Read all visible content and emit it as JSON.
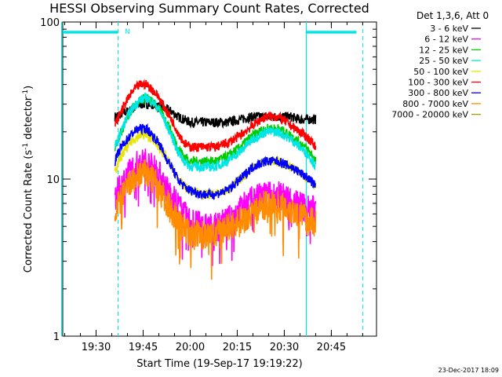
{
  "chart_data": {
    "type": "line",
    "title": "HESSI Observing Summary Count Rates, Corrected",
    "xlabel": "Start Time (19-Sep-17 19:19:22)",
    "ylabel_main": "Corrected Count Rate (s",
    "ylabel_sup1": "-1",
    "ylabel_mid": " detector",
    "ylabel_sup2": "-1",
    "ylabel_end": ")",
    "y_scale": "log",
    "ylim": [
      1,
      100
    ],
    "xlim_minutes": [
      19.25,
      21.0
    ],
    "x_ticks": [
      "19:30",
      "19:45",
      "20:00",
      "20:15",
      "20:30",
      "20:45"
    ],
    "y_ticks": [
      "1",
      "10",
      "100"
    ],
    "legend_header": "Det 1,3,6, Att 0",
    "legend_placement": "right",
    "footer_date": "23-Dec-2017 18:09",
    "night_marker": "N",
    "series": [
      {
        "name": "3 - 6 keV",
        "color": "#000000",
        "x": [
          "19:36",
          "19:38",
          "19:40",
          "19:42",
          "19:44",
          "19:46",
          "19:48",
          "19:50",
          "19:52",
          "19:54",
          "19:56",
          "19:58",
          "20:00",
          "20:04",
          "20:08",
          "20:12",
          "20:16",
          "20:20",
          "20:24",
          "20:28",
          "20:32",
          "20:35",
          "20:38",
          "20:40"
        ],
        "values": [
          25,
          26,
          27,
          28,
          30,
          30,
          30,
          29,
          28,
          27,
          25,
          24,
          23,
          23,
          23,
          23,
          24,
          25,
          25,
          25,
          25,
          24,
          24,
          24
        ]
      },
      {
        "name": "6 - 12 keV",
        "color": "#ff00ff",
        "x": [
          "19:36",
          "19:38",
          "19:40",
          "19:42",
          "19:44",
          "19:46",
          "19:48",
          "19:50",
          "19:52",
          "19:54",
          "19:56",
          "19:58",
          "20:00",
          "20:04",
          "20:08",
          "20:12",
          "20:16",
          "20:20",
          "20:24",
          "20:28",
          "20:32",
          "20:35",
          "20:38",
          "20:40"
        ],
        "values": [
          8,
          9,
          11,
          12,
          13,
          13,
          12,
          11,
          9,
          8,
          7,
          6,
          5.5,
          5,
          5,
          5.5,
          6.5,
          7.5,
          8,
          8,
          7.5,
          7,
          6.5,
          6.5
        ]
      },
      {
        "name": "12 - 25 keV",
        "color": "#00cc00",
        "x": [
          "19:36",
          "19:38",
          "19:40",
          "19:42",
          "19:44",
          "19:46",
          "19:48",
          "19:50",
          "19:52",
          "19:54",
          "19:56",
          "19:58",
          "20:00",
          "20:04",
          "20:08",
          "20:12",
          "20:16",
          "20:20",
          "20:24",
          "20:28",
          "20:32",
          "20:35",
          "20:38",
          "20:40"
        ],
        "values": [
          16,
          20,
          25,
          29,
          32,
          33,
          31,
          28,
          24,
          20,
          16,
          14,
          13,
          13,
          13,
          14,
          16,
          19,
          21,
          21,
          19,
          17,
          15,
          13
        ]
      },
      {
        "name": "25 - 50 keV",
        "color": "#00e5e5",
        "x": [
          "19:36",
          "19:38",
          "19:40",
          "19:42",
          "19:44",
          "19:46",
          "19:48",
          "19:50",
          "19:52",
          "19:54",
          "19:56",
          "19:58",
          "20:00",
          "20:04",
          "20:08",
          "20:12",
          "20:16",
          "20:20",
          "20:24",
          "20:28",
          "20:32",
          "20:35",
          "20:38",
          "20:40"
        ],
        "values": [
          16,
          20,
          25,
          29,
          32,
          33,
          31,
          28,
          23,
          19,
          15,
          13,
          12,
          12,
          12,
          13,
          15,
          18,
          20,
          20,
          18,
          16,
          14,
          12
        ]
      },
      {
        "name": "50 - 100 keV",
        "color": "#e5e500",
        "x": [
          "19:36",
          "19:38",
          "19:40",
          "19:42",
          "19:44",
          "19:46",
          "19:48",
          "19:50",
          "19:52",
          "19:54",
          "19:56",
          "19:58",
          "20:00",
          "20:04",
          "20:08",
          "20:12",
          "20:16",
          "20:20",
          "20:24",
          "20:28",
          "20:32",
          "20:35",
          "20:38",
          "20:40"
        ],
        "values": [
          11,
          14,
          16,
          18,
          19,
          19,
          18,
          16,
          14,
          12,
          10,
          9,
          8.5,
          8,
          8,
          8.5,
          10,
          12,
          13,
          13,
          12,
          11,
          10,
          9
        ]
      },
      {
        "name": "100 - 300 keV",
        "color": "#ff0000",
        "x": [
          "19:36",
          "19:38",
          "19:40",
          "19:42",
          "19:44",
          "19:46",
          "19:48",
          "19:50",
          "19:52",
          "19:54",
          "19:56",
          "19:58",
          "20:00",
          "20:04",
          "20:08",
          "20:12",
          "20:16",
          "20:20",
          "20:24",
          "20:28",
          "20:32",
          "20:35",
          "20:38",
          "20:40"
        ],
        "values": [
          22,
          27,
          32,
          37,
          40,
          40,
          37,
          33,
          28,
          24,
          20,
          17,
          16,
          16,
          16,
          17,
          19,
          22,
          25,
          25,
          22,
          20,
          18,
          16
        ]
      },
      {
        "name": "300 - 800 keV",
        "color": "#0000ff",
        "x": [
          "19:36",
          "19:38",
          "19:40",
          "19:42",
          "19:44",
          "19:46",
          "19:48",
          "19:50",
          "19:52",
          "19:54",
          "19:56",
          "19:58",
          "20:00",
          "20:04",
          "20:08",
          "20:12",
          "20:16",
          "20:20",
          "20:24",
          "20:28",
          "20:32",
          "20:35",
          "20:38",
          "20:40"
        ],
        "values": [
          13,
          16,
          18,
          20,
          21,
          21,
          19,
          17,
          14,
          12,
          10,
          9,
          8.5,
          8,
          8,
          8.5,
          10,
          12,
          13,
          13,
          12,
          11,
          10,
          9
        ]
      },
      {
        "name": "800 - 7000 keV",
        "color": "#ff8c00",
        "x": [
          "19:36",
          "19:38",
          "19:40",
          "19:42",
          "19:44",
          "19:46",
          "19:48",
          "19:50",
          "19:52",
          "19:54",
          "19:56",
          "19:58",
          "20:00",
          "20:04",
          "20:08",
          "20:12",
          "20:16",
          "20:20",
          "20:24",
          "20:28",
          "20:32",
          "20:35",
          "20:38",
          "20:40"
        ],
        "values": [
          6.5,
          7.5,
          9,
          10,
          11,
          11,
          10,
          9,
          7.5,
          6.5,
          5.5,
          5,
          4.5,
          4.5,
          4.5,
          5,
          5.5,
          6.5,
          7,
          7,
          6.5,
          6,
          5.5,
          5.5
        ]
      },
      {
        "name": "7000 - 20000 keV",
        "color": "#a0a000",
        "x": [],
        "values": []
      }
    ]
  },
  "overlays": {
    "bars": [
      {
        "from": "19:19",
        "to": "19:37"
      },
      {
        "from": "20:37",
        "to": "20:53"
      }
    ],
    "solid_lines": [
      "19:19",
      "20:37"
    ],
    "dashed_lines": [
      "19:37",
      "20:55"
    ],
    "bar_color": "#00e5e5"
  }
}
